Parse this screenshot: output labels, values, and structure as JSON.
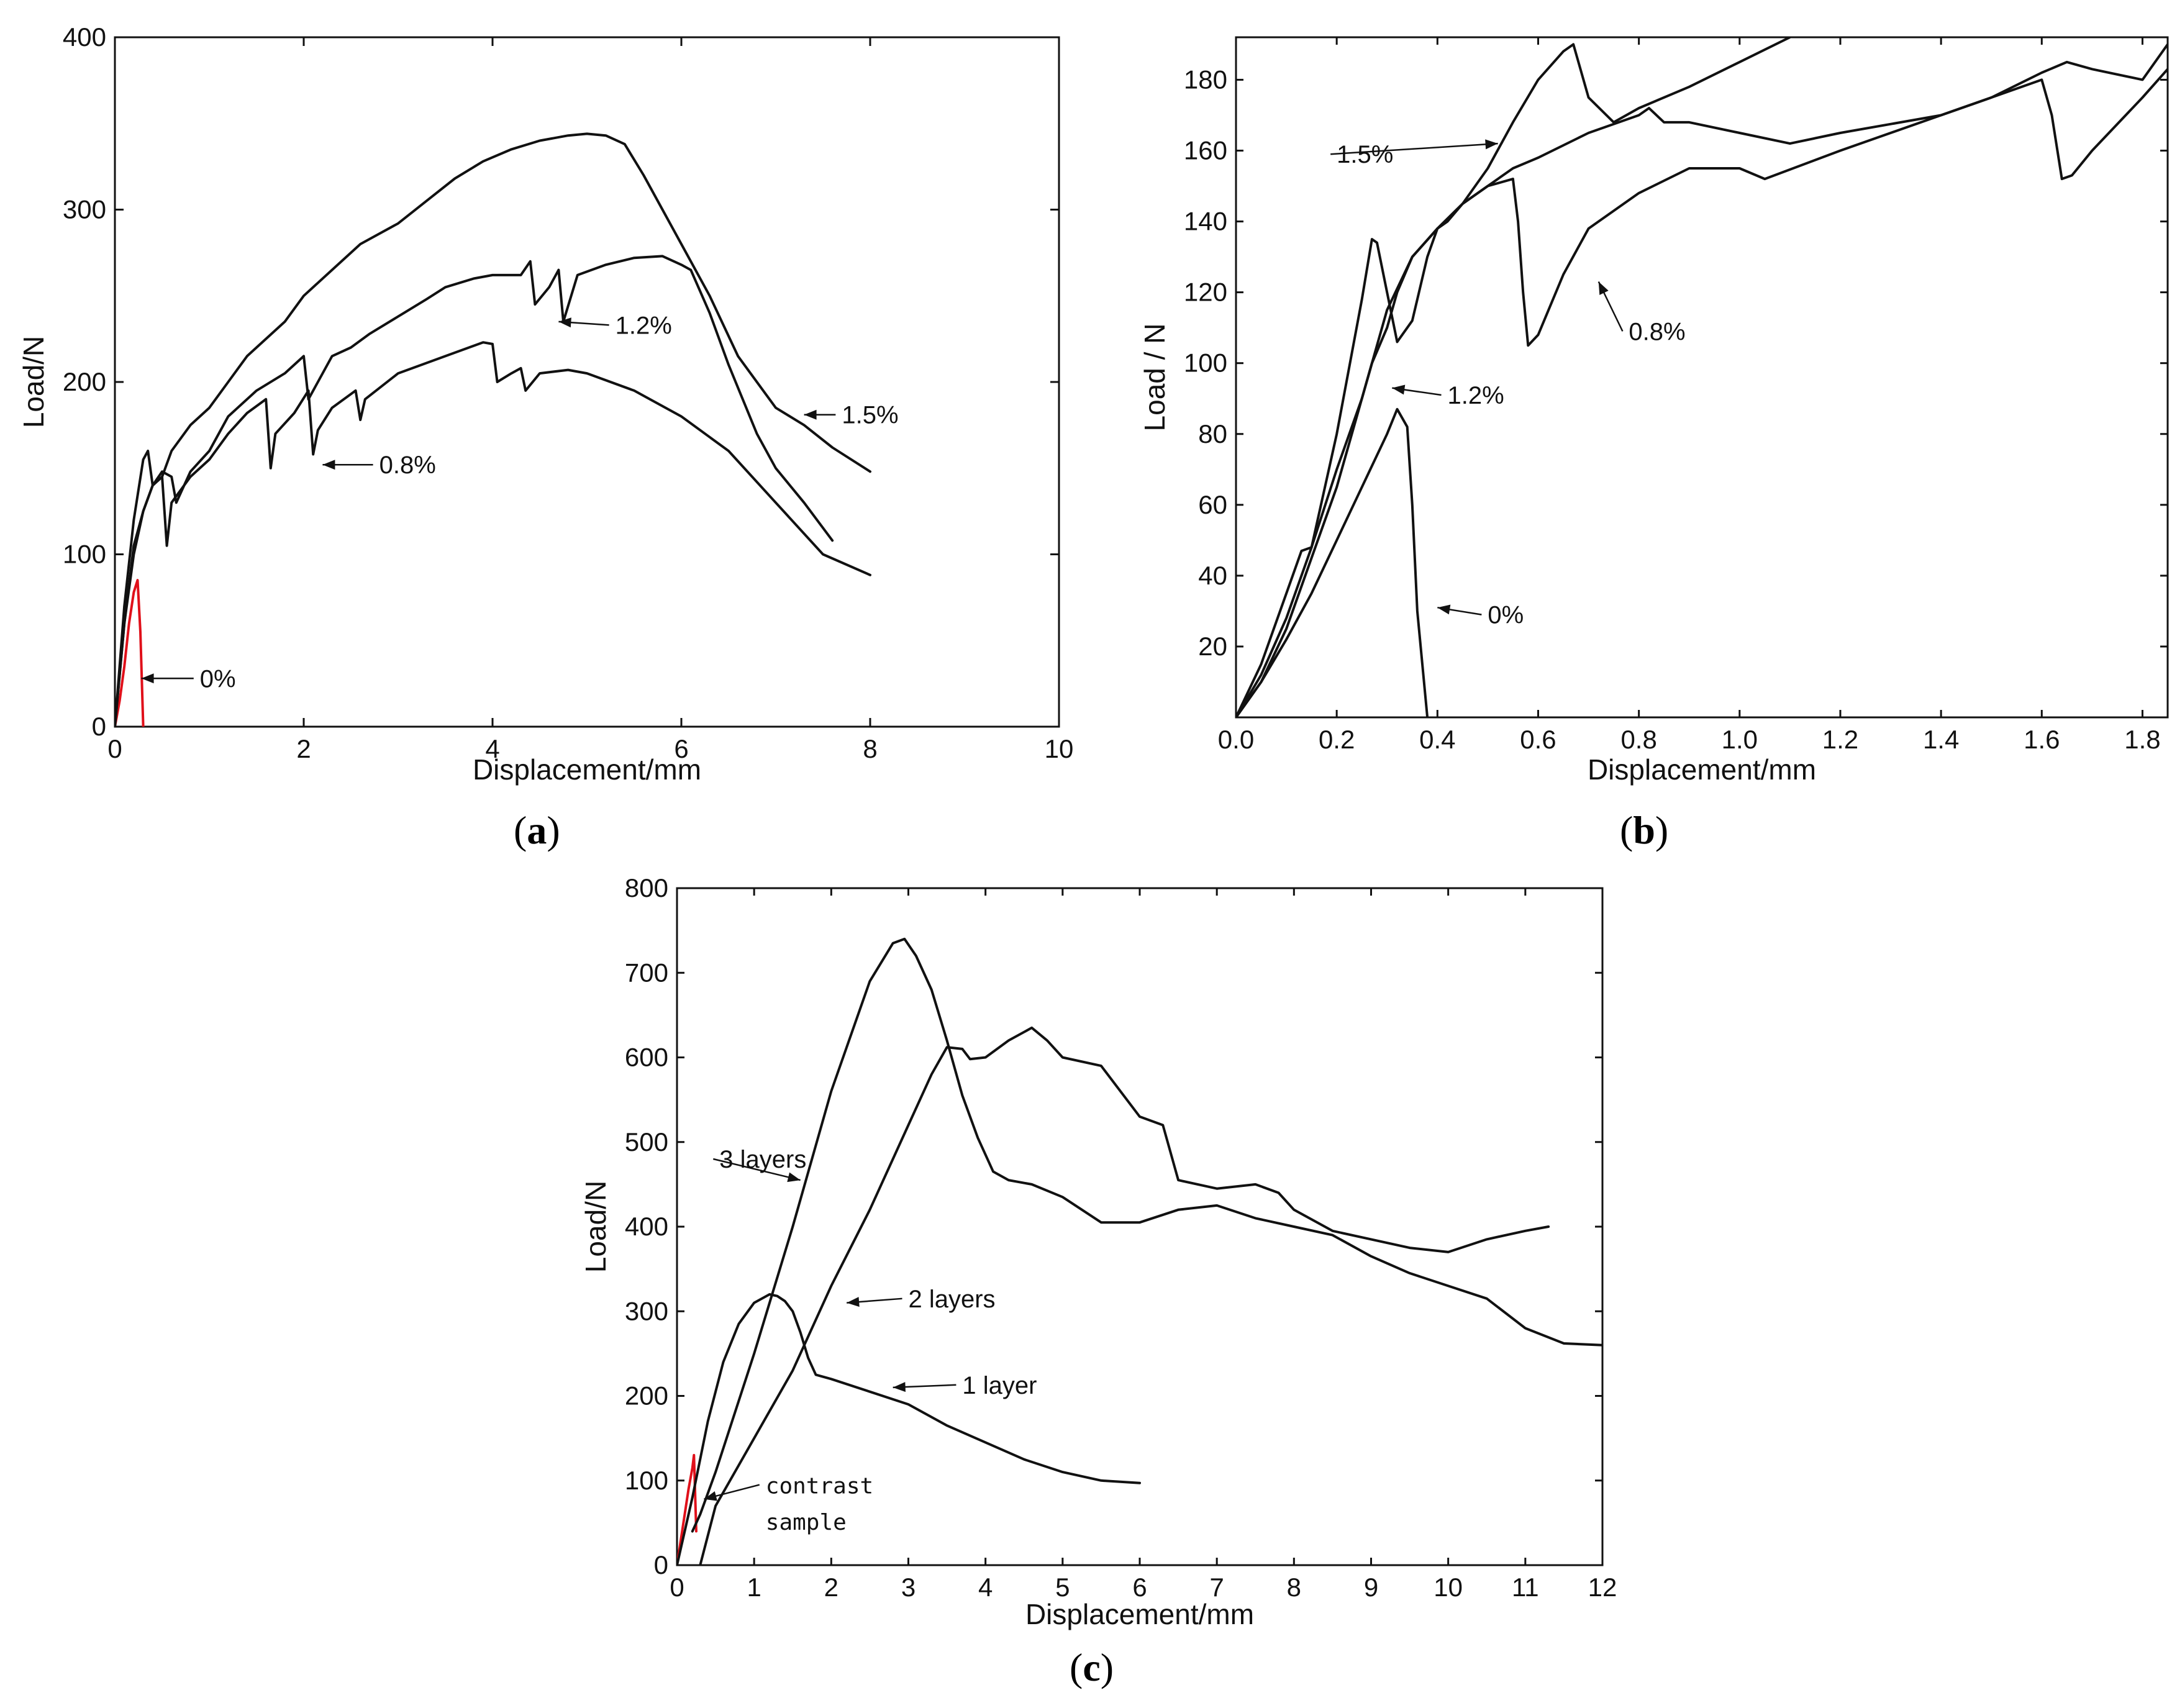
{
  "captions": {
    "a": "a",
    "b": "b",
    "c": "c"
  },
  "chart_data": [
    {
      "id": "a",
      "type": "line",
      "title": "",
      "xlabel": "Displacement/mm",
      "ylabel": "Load/N",
      "xlim": [
        0,
        10
      ],
      "ylim": [
        0,
        400
      ],
      "xticks": [
        0,
        2,
        4,
        6,
        8,
        10
      ],
      "yticks": [
        0,
        100,
        200,
        300,
        400
      ],
      "series": [
        {
          "name": "0%",
          "color": "#e0101a",
          "x": [
            0,
            0.05,
            0.1,
            0.15,
            0.2,
            0.24,
            0.27,
            0.3
          ],
          "y": [
            0,
            15,
            35,
            60,
            78,
            85,
            55,
            0
          ]
        },
        {
          "name": "0.8%",
          "color": "#111111",
          "x": [
            0,
            0.1,
            0.2,
            0.3,
            0.4,
            0.5,
            0.55,
            0.6,
            0.8,
            1.0,
            1.2,
            1.4,
            1.6,
            1.65,
            1.7,
            1.9,
            2.05,
            2.1,
            2.15,
            2.3,
            2.55,
            2.6,
            2.65,
            3.0,
            3.5,
            3.9,
            4.0,
            4.05,
            4.2,
            4.3,
            4.35,
            4.5,
            4.8,
            5.0,
            5.5,
            6.0,
            6.5,
            7.0,
            7.5,
            8.0
          ],
          "y": [
            0,
            60,
            100,
            125,
            140,
            145,
            105,
            130,
            145,
            155,
            170,
            182,
            190,
            150,
            170,
            182,
            195,
            158,
            172,
            185,
            195,
            178,
            190,
            205,
            215,
            223,
            222,
            200,
            205,
            208,
            195,
            205,
            207,
            205,
            195,
            180,
            160,
            130,
            100,
            88
          ]
        },
        {
          "name": "1.2%",
          "color": "#111111",
          "x": [
            0,
            0.1,
            0.2,
            0.3,
            0.4,
            0.5,
            0.6,
            0.65,
            0.8,
            1.0,
            1.2,
            1.5,
            1.8,
            2.0,
            2.05,
            2.3,
            2.5,
            2.7,
            3.0,
            3.3,
            3.5,
            3.8,
            4.0,
            4.3,
            4.4,
            4.45,
            4.6,
            4.7,
            4.75,
            4.9,
            5.2,
            5.5,
            5.8,
            6.0,
            6.1,
            6.3,
            6.5,
            6.8,
            7.0,
            7.3,
            7.6
          ],
          "y": [
            0,
            60,
            105,
            125,
            140,
            148,
            145,
            130,
            148,
            160,
            180,
            195,
            205,
            215,
            190,
            215,
            220,
            228,
            238,
            248,
            255,
            260,
            262,
            262,
            270,
            245,
            255,
            265,
            235,
            262,
            268,
            272,
            273,
            268,
            265,
            240,
            210,
            170,
            150,
            130,
            108
          ]
        },
        {
          "name": "1.5%",
          "color": "#111111",
          "x": [
            0,
            0.1,
            0.2,
            0.3,
            0.35,
            0.4,
            0.5,
            0.6,
            0.8,
            1.0,
            1.2,
            1.4,
            1.6,
            1.8,
            2.0,
            2.3,
            2.6,
            3.0,
            3.3,
            3.6,
            3.9,
            4.2,
            4.5,
            4.8,
            5.0,
            5.2,
            5.4,
            5.6,
            5.8,
            6.0,
            6.3,
            6.6,
            7.0,
            7.3,
            7.6,
            8.0
          ],
          "y": [
            0,
            70,
            120,
            155,
            160,
            140,
            145,
            160,
            175,
            185,
            200,
            215,
            225,
            235,
            250,
            265,
            280,
            292,
            305,
            318,
            328,
            335,
            340,
            343,
            344,
            343,
            338,
            320,
            300,
            280,
            250,
            215,
            185,
            175,
            162,
            148
          ]
        }
      ],
      "annotations": [
        {
          "text": "0%",
          "x": 0.9,
          "y": 28
        },
        {
          "text": "0.8%",
          "x": 2.8,
          "y": 152
        },
        {
          "text": "1.2%",
          "x": 5.3,
          "y": 233
        },
        {
          "text": "1.5%",
          "x": 7.7,
          "y": 181
        }
      ]
    },
    {
      "id": "b",
      "type": "line",
      "title": "",
      "xlabel": "Displacement/mm",
      "ylabel": "Load / N",
      "xlim": [
        0,
        1.85
      ],
      "ylim": [
        0,
        192
      ],
      "xticks": [
        0.0,
        0.2,
        0.4,
        0.6,
        0.8,
        1.0,
        1.2,
        1.4,
        1.6,
        1.8
      ],
      "xticklabels": [
        "0.0",
        "0.2",
        "0.4",
        "0.6",
        "0.8",
        "1.0",
        "1.2",
        "1.4",
        "1.6",
        "1.8"
      ],
      "yticks": [
        20,
        40,
        60,
        80,
        100,
        120,
        140,
        160,
        180
      ],
      "series": [
        {
          "name": "0%",
          "color": "#111111",
          "x": [
            0,
            0.05,
            0.1,
            0.15,
            0.2,
            0.25,
            0.3,
            0.32,
            0.34,
            0.35,
            0.36,
            0.38
          ],
          "y": [
            0,
            10,
            22,
            35,
            50,
            65,
            80,
            87,
            82,
            60,
            30,
            0
          ]
        },
        {
          "name": "0.8%",
          "color": "#111111",
          "x": [
            0,
            0.05,
            0.1,
            0.15,
            0.2,
            0.25,
            0.3,
            0.35,
            0.4,
            0.45,
            0.5,
            0.55,
            0.56,
            0.57,
            0.58,
            0.6,
            0.65,
            0.7,
            0.8,
            0.9,
            1.0,
            1.05,
            1.2,
            1.4,
            1.5,
            1.6,
            1.62,
            1.64,
            1.66,
            1.7,
            1.8,
            1.85
          ],
          "y": [
            0,
            10,
            25,
            45,
            65,
            90,
            115,
            130,
            138,
            145,
            150,
            152,
            140,
            120,
            105,
            108,
            125,
            138,
            148,
            155,
            155,
            152,
            160,
            170,
            175,
            180,
            170,
            152,
            153,
            160,
            175,
            183
          ]
        },
        {
          "name": "1.2%",
          "color": "#111111",
          "x": [
            0,
            0.05,
            0.1,
            0.15,
            0.2,
            0.25,
            0.27,
            0.3,
            0.32,
            0.35,
            0.4,
            0.45,
            0.5,
            0.55,
            0.6,
            0.7,
            0.8,
            0.82,
            0.85,
            0.9,
            1.0,
            1.1,
            1.2,
            1.4,
            1.5,
            1.6,
            1.65,
            1.7,
            1.8,
            1.85
          ],
          "y": [
            0,
            12,
            28,
            48,
            70,
            90,
            100,
            110,
            120,
            130,
            138,
            145,
            150,
            155,
            158,
            165,
            170,
            172,
            168,
            168,
            165,
            162,
            165,
            170,
            175,
            182,
            185,
            183,
            180,
            190
          ]
        },
        {
          "name": "1.5%",
          "color": "#111111",
          "x": [
            0,
            0.05,
            0.1,
            0.13,
            0.15,
            0.2,
            0.25,
            0.27,
            0.28,
            0.3,
            0.32,
            0.35,
            0.38,
            0.4,
            0.42,
            0.45,
            0.5,
            0.55,
            0.6,
            0.65,
            0.67,
            0.7,
            0.75,
            0.8,
            0.9,
            1.0,
            1.1
          ],
          "y": [
            0,
            15,
            35,
            47,
            48,
            80,
            118,
            135,
            134,
            120,
            106,
            112,
            130,
            138,
            140,
            145,
            155,
            168,
            180,
            188,
            190,
            175,
            168,
            172,
            178,
            185,
            192
          ]
        }
      ],
      "annotations": [
        {
          "text": "1.5%",
          "x": 0.27,
          "y": 159
        },
        {
          "text": "0.8%",
          "x": 0.78,
          "y": 109
        },
        {
          "text": "1.2%",
          "x": 0.47,
          "y": 91
        },
        {
          "text": "0%",
          "x": 0.52,
          "y": 29
        }
      ]
    },
    {
      "id": "c",
      "type": "line",
      "title": "",
      "xlabel": "Displacement/mm",
      "ylabel": "Load/N",
      "xlim": [
        0,
        12
      ],
      "ylim": [
        0,
        800
      ],
      "xticks": [
        0,
        1,
        2,
        3,
        4,
        5,
        6,
        7,
        8,
        9,
        10,
        11,
        12
      ],
      "yticks": [
        0,
        100,
        200,
        300,
        400,
        500,
        600,
        700,
        800
      ],
      "series": [
        {
          "name": "contrast sample",
          "color": "#e0101a",
          "x": [
            0,
            0.05,
            0.1,
            0.15,
            0.2,
            0.22,
            0.25
          ],
          "y": [
            0,
            30,
            60,
            90,
            115,
            130,
            40
          ]
        },
        {
          "name": "1 layer",
          "color": "#111111",
          "x": [
            0,
            0.2,
            0.4,
            0.6,
            0.8,
            1.0,
            1.2,
            1.3,
            1.4,
            1.5,
            1.6,
            1.7,
            1.8,
            2.0,
            2.5,
            3.0,
            3.5,
            4.0,
            4.5,
            5.0,
            5.5,
            6.0
          ],
          "y": [
            0,
            80,
            170,
            240,
            285,
            310,
            320,
            318,
            312,
            300,
            275,
            245,
            225,
            220,
            205,
            190,
            165,
            145,
            125,
            110,
            100,
            97
          ]
        },
        {
          "name": "2 layers",
          "color": "#111111",
          "x": [
            0.3,
            0.5,
            1.0,
            1.5,
            2.0,
            2.5,
            3.0,
            3.3,
            3.5,
            3.7,
            3.8,
            4.0,
            4.3,
            4.6,
            4.8,
            5.0,
            5.5,
            6.0,
            6.3,
            6.5,
            7.0,
            7.5,
            7.8,
            8.0,
            8.5,
            9.0,
            9.5,
            10.0,
            10.5,
            11.0,
            11.3
          ],
          "y": [
            0,
            70,
            150,
            230,
            330,
            420,
            520,
            580,
            612,
            610,
            598,
            600,
            620,
            635,
            620,
            600,
            590,
            530,
            520,
            455,
            445,
            450,
            440,
            420,
            395,
            385,
            375,
            370,
            385,
            395,
            400
          ]
        },
        {
          "name": "3 layers",
          "color": "#111111",
          "x": [
            0.2,
            0.3,
            0.5,
            1.0,
            1.5,
            2.0,
            2.5,
            2.8,
            2.95,
            3.1,
            3.3,
            3.5,
            3.7,
            3.9,
            4.1,
            4.3,
            4.6,
            5.0,
            5.5,
            6.0,
            6.5,
            7.0,
            7.5,
            8.0,
            8.5,
            9.0,
            9.5,
            10.0,
            10.5,
            11.0,
            11.5,
            12.0
          ],
          "y": [
            40,
            60,
            110,
            250,
            400,
            560,
            690,
            735,
            740,
            720,
            680,
            620,
            555,
            505,
            465,
            455,
            450,
            435,
            405,
            405,
            420,
            425,
            410,
            400,
            390,
            365,
            345,
            330,
            315,
            280,
            262,
            260
          ]
        }
      ],
      "annotations": [
        {
          "text": "3 layers",
          "x": 0.55,
          "y": 480
        },
        {
          "text": "2 layers",
          "x": 3.0,
          "y": 315
        },
        {
          "text": "1 layer",
          "x": 3.7,
          "y": 213
        },
        {
          "text": "contrast",
          "x": 1.15,
          "y": 95
        },
        {
          "text": "sample",
          "x": 1.15,
          "y": 52
        }
      ]
    }
  ]
}
